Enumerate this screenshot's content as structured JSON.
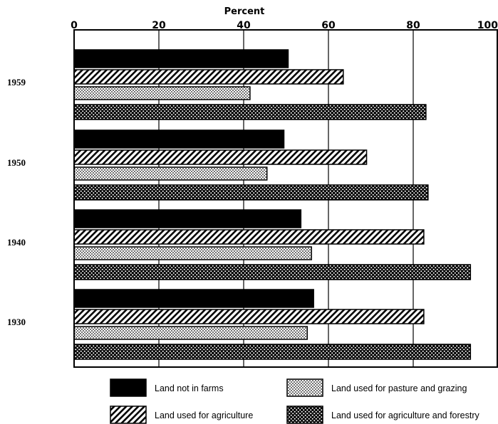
{
  "chart_data": {
    "type": "bar",
    "orientation": "horizontal",
    "title": "",
    "xlabel": "Percent",
    "ylabel": "",
    "xlim": [
      0,
      100
    ],
    "xticks": [
      0,
      20,
      40,
      60,
      80,
      100
    ],
    "grid": true,
    "legend_position": "bottom",
    "categories": [
      "1959",
      "1950",
      "1940",
      "1930"
    ],
    "series": [
      {
        "name": "Land not in farms",
        "pattern": "solid-black",
        "values": [
          50.5,
          49.5,
          53.5,
          56.5
        ]
      },
      {
        "name": "Land used for agriculture",
        "pattern": "diagonal-hatch",
        "values": [
          63.5,
          69,
          82.5,
          82.5
        ]
      },
      {
        "name": "Land used for pasture and grazing",
        "pattern": "fine-dot",
        "values": [
          41.5,
          45.5,
          56,
          55
        ]
      },
      {
        "name": "Land used for agriculture and forestry",
        "pattern": "coarse-dot",
        "values": [
          83,
          83.5,
          93.5,
          93.5
        ]
      }
    ],
    "colors": {
      "ink": "#000000",
      "background": "#ffffff"
    }
  }
}
